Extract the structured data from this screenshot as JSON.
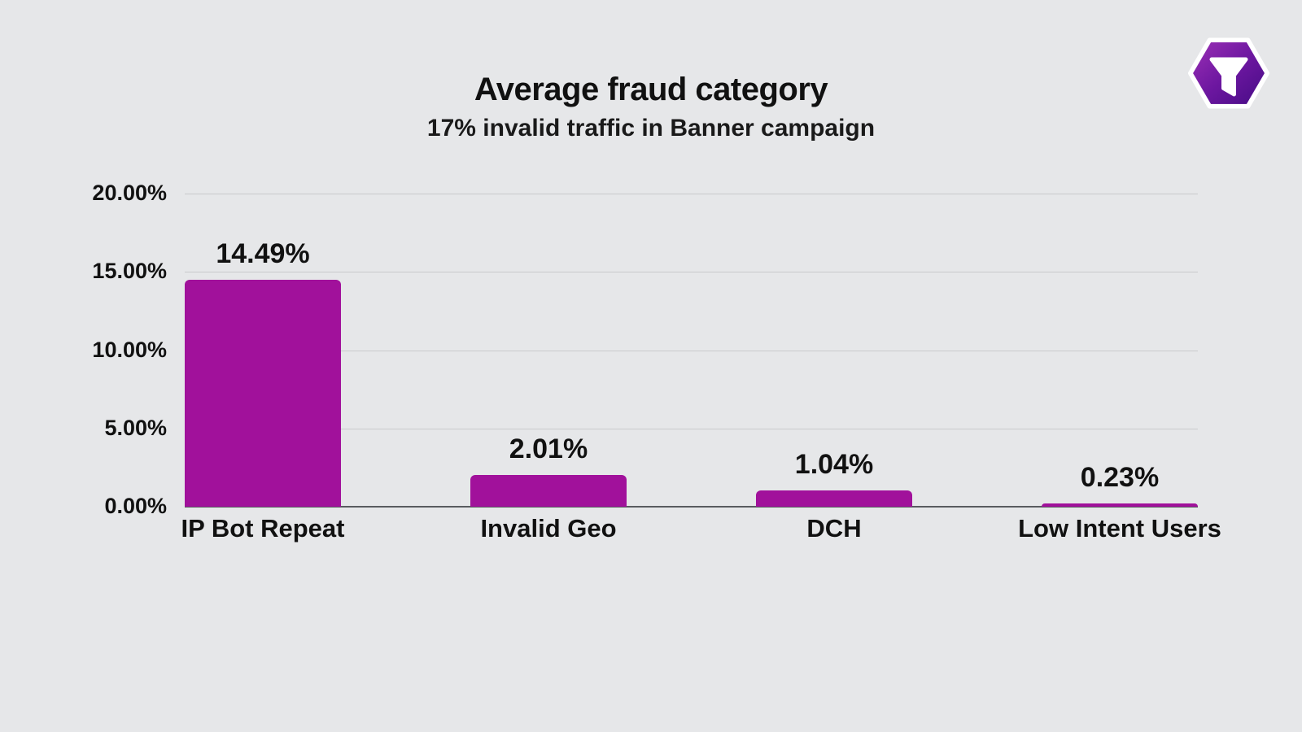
{
  "page": {
    "background_color": "#e6e7e9",
    "text_color": "#111111"
  },
  "header": {
    "title": "Average fraud category",
    "subtitle": "17% invalid traffic in Banner campaign"
  },
  "logo": {
    "icon": "funnel-icon",
    "shape": "rounded-hexagon",
    "gradient_start": "#9a2fb5",
    "gradient_end": "#470c86",
    "icon_color": "#ffffff",
    "border_color": "#ffffff"
  },
  "chart_data": {
    "type": "bar",
    "title": "Average fraud category",
    "subtitle": "17% invalid traffic in Banner campaign",
    "categories": [
      "IP Bot Repeat",
      "Invalid Geo",
      "DCH",
      "Low Intent Users"
    ],
    "values": [
      14.49,
      2.01,
      1.04,
      0.23
    ],
    "value_labels": [
      "14.49%",
      "2.01%",
      "1.04%",
      "0.23%"
    ],
    "y_ticks": [
      "20.00%",
      "15.00%",
      "10.00%",
      "5.00%",
      "0.00%"
    ],
    "ylim": [
      0,
      20
    ],
    "xlabel": "",
    "ylabel": "",
    "grid": true,
    "legend": false,
    "bar_color": "#a1119b",
    "gridline_color": "#c9cacc",
    "baseline_color": "#595c60"
  }
}
